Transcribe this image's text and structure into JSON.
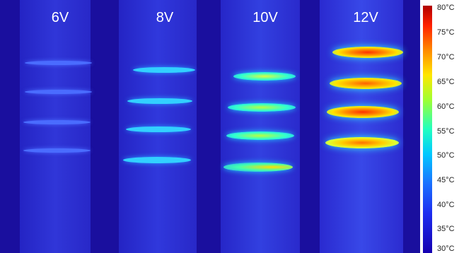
{
  "voltage_labels": [
    "6V",
    "8V",
    "10V",
    "12V"
  ],
  "colorbar": {
    "ticks": [
      "80°C",
      "75°C",
      "70°C",
      "65°C",
      "60°C",
      "55°C",
      "50°C",
      "45°C",
      "40°C",
      "35°C",
      "30°C"
    ]
  },
  "colors": {
    "background": "#1a0f9e",
    "strip": "#2b2fd6",
    "hot": "#ff3300",
    "warm": "#ffdd00",
    "cool": "#30e8ff"
  }
}
